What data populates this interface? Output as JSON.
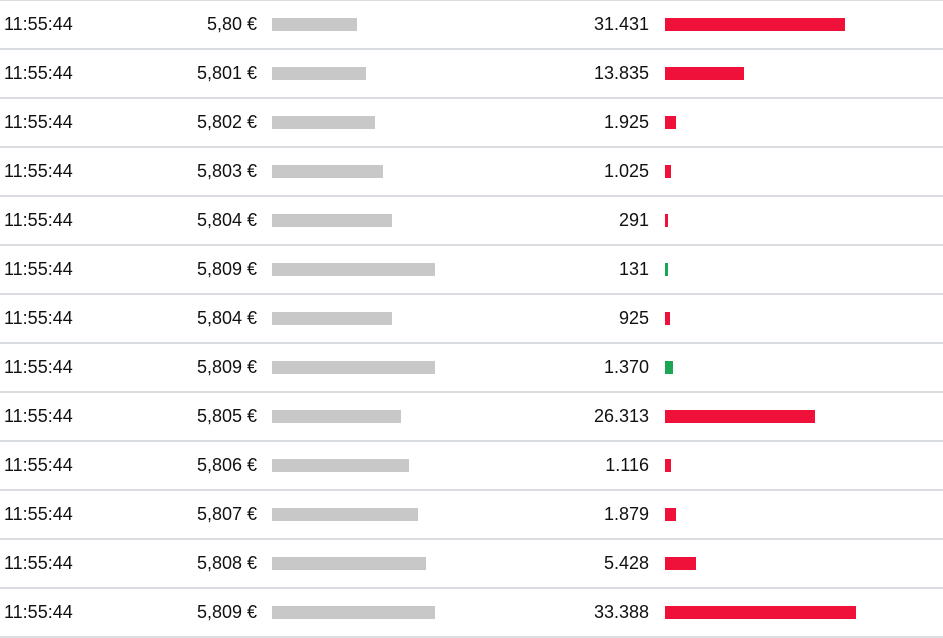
{
  "colors": {
    "sell": "#f0113a",
    "buy": "#1aa655",
    "price_bar": "#c8c8c8",
    "divider": "#d9dde2"
  },
  "price_scale": {
    "min": 5.796,
    "max": 5.809
  },
  "volume_scale": {
    "max": 35000
  },
  "trades": [
    {
      "time": "11:55:44",
      "price": "5,80 €",
      "price_value": 5.8,
      "volume": "31.431",
      "volume_value": 31431,
      "side": "sell"
    },
    {
      "time": "11:55:44",
      "price": "5,801 €",
      "price_value": 5.801,
      "volume": "13.835",
      "volume_value": 13835,
      "side": "sell"
    },
    {
      "time": "11:55:44",
      "price": "5,802 €",
      "price_value": 5.802,
      "volume": "1.925",
      "volume_value": 1925,
      "side": "sell"
    },
    {
      "time": "11:55:44",
      "price": "5,803 €",
      "price_value": 5.803,
      "volume": "1.025",
      "volume_value": 1025,
      "side": "sell"
    },
    {
      "time": "11:55:44",
      "price": "5,804 €",
      "price_value": 5.804,
      "volume": "291",
      "volume_value": 291,
      "side": "sell"
    },
    {
      "time": "11:55:44",
      "price": "5,809 €",
      "price_value": 5.809,
      "volume": "131",
      "volume_value": 131,
      "side": "buy"
    },
    {
      "time": "11:55:44",
      "price": "5,804 €",
      "price_value": 5.804,
      "volume": "925",
      "volume_value": 925,
      "side": "sell"
    },
    {
      "time": "11:55:44",
      "price": "5,809 €",
      "price_value": 5.809,
      "volume": "1.370",
      "volume_value": 1370,
      "side": "buy"
    },
    {
      "time": "11:55:44",
      "price": "5,805 €",
      "price_value": 5.805,
      "volume": "26.313",
      "volume_value": 26313,
      "side": "sell"
    },
    {
      "time": "11:55:44",
      "price": "5,806 €",
      "price_value": 5.806,
      "volume": "1.116",
      "volume_value": 1116,
      "side": "sell"
    },
    {
      "time": "11:55:44",
      "price": "5,807 €",
      "price_value": 5.807,
      "volume": "1.879",
      "volume_value": 1879,
      "side": "sell"
    },
    {
      "time": "11:55:44",
      "price": "5,808 €",
      "price_value": 5.808,
      "volume": "5.428",
      "volume_value": 5428,
      "side": "sell"
    },
    {
      "time": "11:55:44",
      "price": "5,809 €",
      "price_value": 5.809,
      "volume": "33.388",
      "volume_value": 33388,
      "side": "sell"
    }
  ]
}
